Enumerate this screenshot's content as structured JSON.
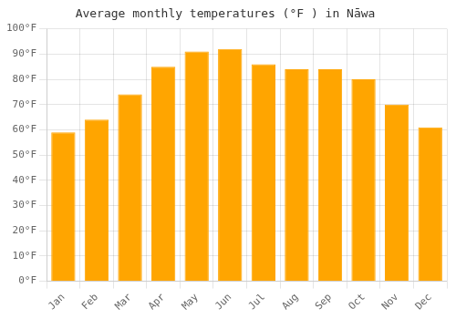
{
  "chart_data": {
    "type": "bar",
    "title": "Average monthly temperatures (°F ) in Nāwa",
    "categories": [
      "Jan",
      "Feb",
      "Mar",
      "Apr",
      "May",
      "Jun",
      "Jul",
      "Aug",
      "Sep",
      "Oct",
      "Nov",
      "Dec"
    ],
    "values": [
      59,
      64,
      74,
      85,
      91,
      92,
      86,
      84,
      84,
      80,
      70,
      61
    ],
    "color": "#FFA500",
    "ylim": [
      0,
      100
    ],
    "yticks": [
      {
        "value": 0,
        "label": "0°F"
      },
      {
        "value": 10,
        "label": "10°F"
      },
      {
        "value": 20,
        "label": "20°F"
      },
      {
        "value": 30,
        "label": "30°F"
      },
      {
        "value": 40,
        "label": "40°F"
      },
      {
        "value": 50,
        "label": "50°F"
      },
      {
        "value": 60,
        "label": "60°F"
      },
      {
        "value": 70,
        "label": "70°F"
      },
      {
        "value": 80,
        "label": "80°F"
      },
      {
        "value": 90,
        "label": "90°F"
      },
      {
        "value": 100,
        "label": "100°F"
      }
    ],
    "grid": true
  }
}
